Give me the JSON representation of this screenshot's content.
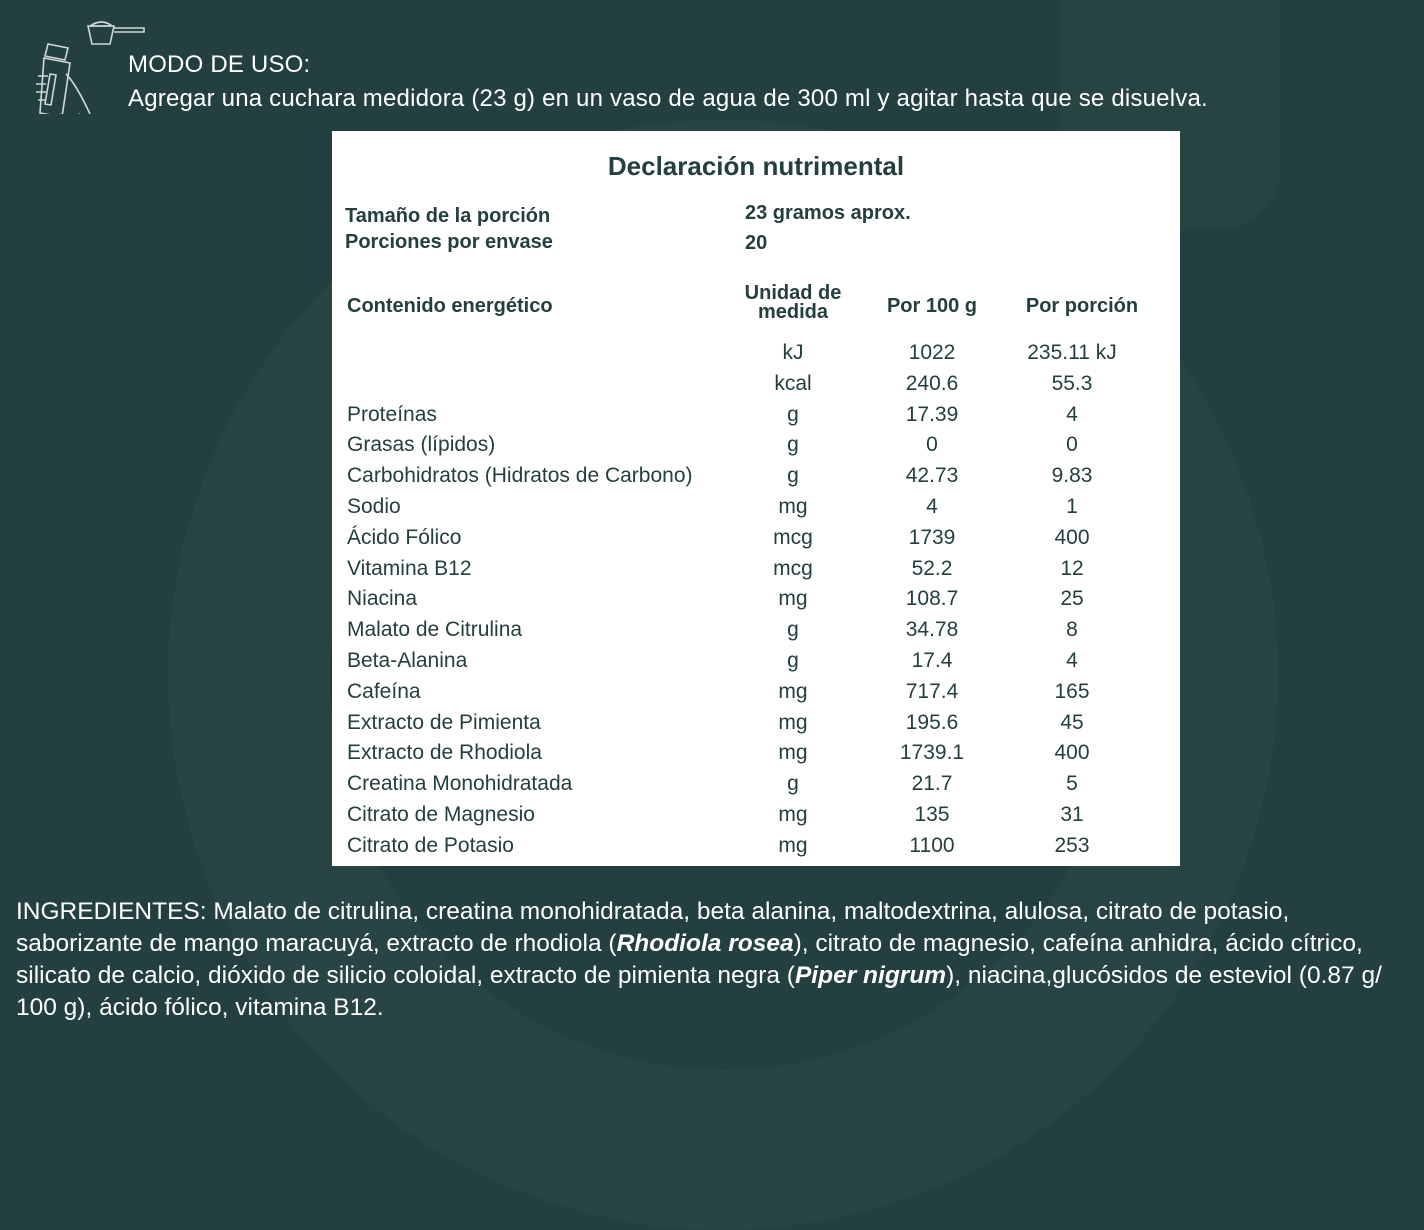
{
  "usage": {
    "title": "MODO DE USO:",
    "instructions": "Agregar una cuchara medidora (23 g) en un vaso de agua de 300 ml y agitar hasta que se disuelva.",
    "icon": "shaker-and-scoop-icon"
  },
  "nutrition": {
    "title": "Declaración nutrimental",
    "serving_size_label": "Tamaño de la porción",
    "serving_size_value": "23 gramos aprox.",
    "servings_label": "Porciones por envase",
    "servings_value": "20",
    "headers": {
      "energy": "Contenido energético",
      "unit_line1": "Unidad de",
      "unit_line2": "medida",
      "per100": "Por 100 g",
      "per_portion": "Por porción"
    },
    "rows": [
      {
        "name": "",
        "unit": "kJ",
        "per100": "1022",
        "portion": "235.11 kJ"
      },
      {
        "name": "",
        "unit": "kcal",
        "per100": "240.6",
        "portion": "55.3"
      },
      {
        "name": "Proteínas",
        "unit": "g",
        "per100": "17.39",
        "portion": "4"
      },
      {
        "name": "Grasas (lípidos)",
        "unit": "g",
        "per100": "0",
        "portion": "0"
      },
      {
        "name": "Carbohidratos (Hidratos de Carbono)",
        "unit": "g",
        "per100": "42.73",
        "portion": "9.83"
      },
      {
        "name": "Sodio",
        "unit": "mg",
        "per100": "4",
        "portion": "1"
      },
      {
        "name": "Ácido Fólico",
        "unit": "mcg",
        "per100": "1739",
        "portion": "400"
      },
      {
        "name": "Vitamina B12",
        "unit": "mcg",
        "per100": "52.2",
        "portion": "12"
      },
      {
        "name": "Niacina",
        "unit": "mg",
        "per100": "108.7",
        "portion": "25"
      },
      {
        "name": "Malato de Citrulina",
        "unit": "g",
        "per100": "34.78",
        "portion": "8"
      },
      {
        "name": "Beta-Alanina",
        "unit": "g",
        "per100": "17.4",
        "portion": "4"
      },
      {
        "name": "Cafeína",
        "unit": "mg",
        "per100": "717.4",
        "portion": "165"
      },
      {
        "name": "Extracto de Pimienta",
        "unit": "mg",
        "per100": "195.6",
        "portion": "45"
      },
      {
        "name": "Extracto de Rhodiola",
        "unit": "mg",
        "per100": "1739.1",
        "portion": "400"
      },
      {
        "name": "Creatina Monohidratada",
        "unit": "g",
        "per100": "21.7",
        "portion": "5"
      },
      {
        "name": "Citrato de Magnesio",
        "unit": "mg",
        "per100": "135",
        "portion": "31"
      },
      {
        "name": "Citrato de Potasio",
        "unit": "mg",
        "per100": "1100",
        "portion": "253"
      }
    ]
  },
  "ingredients": {
    "part1": "INGREDIENTES: Malato de citrulina, creatina monohidratada, beta alanina, maltodextrina, alulosa, citrato de potasio, saborizante de mango maracuyá, extracto de rhodiola (",
    "italic1": "Rhodiola rosea",
    "part2": "), citrato de magnesio, cafeína anhidra, ácido cítrico, silicato de calcio, dióxido de silicio coloidal, extracto de pimienta negra (",
    "italic2": "Piper nigrum",
    "part3": "), niacina,glucósidos de esteviol (0.87 g/ 100 g), ácido fólico, vitamina B12."
  },
  "colors": {
    "background": "#233f3f",
    "panel": "#ffffff",
    "text_dark": "#233f3f"
  }
}
